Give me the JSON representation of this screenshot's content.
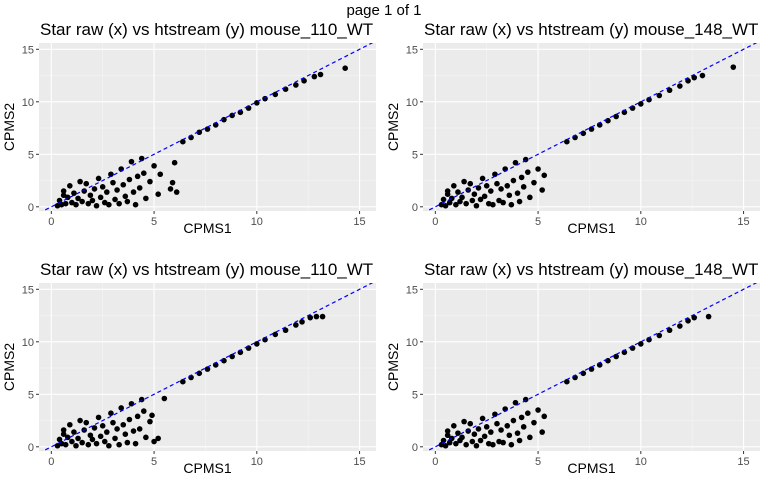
{
  "page_label": "page 1 of 1",
  "chart_data": [
    {
      "type": "scatter",
      "title": "Star raw (x) vs htstream (y) mouse_110_WT",
      "xlabel": "CPMS1",
      "ylabel": "CPMS2",
      "xlim": [
        -0.6,
        15.8
      ],
      "ylim": [
        -0.4,
        15.6
      ],
      "x_ticks": [
        0,
        5,
        10,
        15
      ],
      "y_ticks": [
        0,
        5,
        10,
        15
      ],
      "reference_line": {
        "slope": 1,
        "intercept": 0,
        "style": "dashed",
        "color": "#0000ff"
      },
      "points": [
        [
          0.3,
          0.1
        ],
        [
          0.4,
          0.6
        ],
        [
          0.5,
          0.2
        ],
        [
          0.6,
          1.1
        ],
        [
          0.7,
          0.3
        ],
        [
          0.8,
          0.9
        ],
        [
          1.0,
          0.4
        ],
        [
          1.1,
          1.3
        ],
        [
          1.2,
          0.2
        ],
        [
          1.3,
          0.8
        ],
        [
          1.5,
          0.5
        ],
        [
          1.6,
          1.5
        ],
        [
          1.8,
          0.3
        ],
        [
          1.9,
          1.1
        ],
        [
          2.0,
          0.6
        ],
        [
          2.1,
          1.7
        ],
        [
          2.2,
          0.1
        ],
        [
          2.4,
          0.9
        ],
        [
          2.5,
          1.9
        ],
        [
          2.6,
          0.4
        ],
        [
          2.7,
          1.4
        ],
        [
          2.8,
          0.2
        ],
        [
          3.0,
          2.3
        ],
        [
          3.1,
          0.7
        ],
        [
          3.2,
          1.6
        ],
        [
          3.3,
          0.3
        ],
        [
          3.5,
          2.1
        ],
        [
          3.6,
          1.0
        ],
        [
          3.7,
          0.5
        ],
        [
          3.8,
          2.6
        ],
        [
          4.0,
          1.4
        ],
        [
          4.1,
          0.2
        ],
        [
          4.2,
          2.9
        ],
        [
          4.3,
          1.8
        ],
        [
          4.5,
          3.2
        ],
        [
          4.6,
          0.8
        ],
        [
          4.8,
          2.4
        ],
        [
          5.0,
          3.9
        ],
        [
          5.2,
          1.2
        ],
        [
          5.3,
          3.1
        ],
        [
          6.0,
          4.2
        ],
        [
          5.8,
          1.7
        ],
        [
          5.9,
          2.3
        ],
        [
          6.1,
          1.4
        ],
        [
          0.9,
          2.0
        ],
        [
          1.4,
          2.4
        ],
        [
          0.6,
          1.5
        ],
        [
          1.7,
          2.2
        ],
        [
          2.3,
          2.7
        ],
        [
          2.9,
          3.1
        ],
        [
          3.4,
          3.6
        ],
        [
          3.9,
          4.3
        ],
        [
          4.4,
          4.6
        ],
        [
          6.4,
          6.2
        ],
        [
          6.8,
          6.6
        ],
        [
          7.2,
          7.1
        ],
        [
          7.6,
          7.4
        ],
        [
          8.0,
          7.8
        ],
        [
          8.4,
          8.3
        ],
        [
          8.8,
          8.7
        ],
        [
          9.2,
          9.0
        ],
        [
          9.6,
          9.4
        ],
        [
          10.0,
          9.9
        ],
        [
          10.4,
          10.3
        ],
        [
          10.9,
          10.7
        ],
        [
          11.4,
          11.2
        ],
        [
          11.9,
          11.6
        ],
        [
          12.3,
          12.0
        ],
        [
          12.8,
          12.4
        ],
        [
          13.1,
          12.6
        ],
        [
          14.3,
          13.2
        ]
      ]
    },
    {
      "type": "scatter",
      "title": "Star raw (x) vs htstream (y) mouse_148_WT",
      "xlabel": "CPMS1",
      "ylabel": "CPMS2",
      "xlim": [
        -0.6,
        15.8
      ],
      "ylim": [
        -0.4,
        15.6
      ],
      "x_ticks": [
        0,
        5,
        10,
        15
      ],
      "y_ticks": [
        0,
        5,
        10,
        15
      ],
      "reference_line": {
        "slope": 1,
        "intercept": 0,
        "style": "dashed",
        "color": "#0000ff"
      },
      "points": [
        [
          0.3,
          0.2
        ],
        [
          0.4,
          0.7
        ],
        [
          0.5,
          0.1
        ],
        [
          0.6,
          1.2
        ],
        [
          0.7,
          0.4
        ],
        [
          0.8,
          0.8
        ],
        [
          1.0,
          0.2
        ],
        [
          1.1,
          1.4
        ],
        [
          1.2,
          0.5
        ],
        [
          1.3,
          0.9
        ],
        [
          1.5,
          0.3
        ],
        [
          1.6,
          1.6
        ],
        [
          1.8,
          0.6
        ],
        [
          1.9,
          1.2
        ],
        [
          2.0,
          0.1
        ],
        [
          2.1,
          1.8
        ],
        [
          2.2,
          0.7
        ],
        [
          2.4,
          1.0
        ],
        [
          2.5,
          2.0
        ],
        [
          2.6,
          0.3
        ],
        [
          2.7,
          1.5
        ],
        [
          2.8,
          0.2
        ],
        [
          3.0,
          2.2
        ],
        [
          3.1,
          0.6
        ],
        [
          3.2,
          1.7
        ],
        [
          3.3,
          0.4
        ],
        [
          3.5,
          2.0
        ],
        [
          3.6,
          1.1
        ],
        [
          3.7,
          0.2
        ],
        [
          3.8,
          2.5
        ],
        [
          4.0,
          1.3
        ],
        [
          4.1,
          0.5
        ],
        [
          4.2,
          2.8
        ],
        [
          4.3,
          1.9
        ],
        [
          4.5,
          3.3
        ],
        [
          4.6,
          0.9
        ],
        [
          4.8,
          2.3
        ],
        [
          5.0,
          3.6
        ],
        [
          5.2,
          1.6
        ],
        [
          5.3,
          3.0
        ],
        [
          0.9,
          2.0
        ],
        [
          1.4,
          2.4
        ],
        [
          0.6,
          1.5
        ],
        [
          1.7,
          2.2
        ],
        [
          2.3,
          2.7
        ],
        [
          2.9,
          3.1
        ],
        [
          3.4,
          3.6
        ],
        [
          3.9,
          4.2
        ],
        [
          4.4,
          4.5
        ],
        [
          6.4,
          6.2
        ],
        [
          6.8,
          6.6
        ],
        [
          7.2,
          7.0
        ],
        [
          7.6,
          7.4
        ],
        [
          8.0,
          7.8
        ],
        [
          8.4,
          8.2
        ],
        [
          8.8,
          8.6
        ],
        [
          9.2,
          9.0
        ],
        [
          9.6,
          9.4
        ],
        [
          10.0,
          9.8
        ],
        [
          10.4,
          10.2
        ],
        [
          10.9,
          10.6
        ],
        [
          11.4,
          11.1
        ],
        [
          11.9,
          11.5
        ],
        [
          12.3,
          12.0
        ],
        [
          12.6,
          12.3
        ],
        [
          13.0,
          12.5
        ],
        [
          14.5,
          13.3
        ]
      ]
    },
    {
      "type": "scatter",
      "title": "Star raw (x) vs htstream (y) mouse_110_WT",
      "xlabel": "CPMS1",
      "ylabel": "CPMS2",
      "xlim": [
        -0.6,
        15.8
      ],
      "ylim": [
        -0.4,
        15.6
      ],
      "x_ticks": [
        0,
        5,
        10,
        15
      ],
      "y_ticks": [
        0,
        5,
        10,
        15
      ],
      "reference_line": {
        "slope": 1,
        "intercept": 0,
        "style": "dashed",
        "color": "#0000ff"
      },
      "points": [
        [
          0.3,
          0.1
        ],
        [
          0.4,
          0.7
        ],
        [
          0.5,
          0.3
        ],
        [
          0.6,
          1.2
        ],
        [
          0.7,
          0.2
        ],
        [
          0.8,
          0.9
        ],
        [
          1.0,
          0.5
        ],
        [
          1.1,
          1.4
        ],
        [
          1.2,
          0.1
        ],
        [
          1.3,
          0.8
        ],
        [
          1.5,
          0.4
        ],
        [
          1.6,
          1.6
        ],
        [
          1.8,
          0.2
        ],
        [
          1.9,
          1.1
        ],
        [
          2.0,
          0.7
        ],
        [
          2.1,
          1.8
        ],
        [
          2.2,
          0.3
        ],
        [
          2.4,
          1.0
        ],
        [
          2.5,
          2.0
        ],
        [
          2.6,
          0.5
        ],
        [
          2.7,
          1.4
        ],
        [
          2.8,
          0.1
        ],
        [
          3.0,
          2.3
        ],
        [
          3.1,
          0.8
        ],
        [
          3.2,
          1.7
        ],
        [
          3.3,
          0.2
        ],
        [
          3.5,
          2.1
        ],
        [
          3.6,
          1.2
        ],
        [
          3.7,
          0.4
        ],
        [
          3.8,
          2.6
        ],
        [
          4.0,
          1.5
        ],
        [
          4.1,
          0.3
        ],
        [
          4.2,
          2.9
        ],
        [
          4.3,
          1.7
        ],
        [
          4.5,
          3.4
        ],
        [
          4.6,
          0.9
        ],
        [
          4.8,
          2.4
        ],
        [
          5.0,
          0.5
        ],
        [
          5.2,
          0.8
        ],
        [
          4.9,
          3.0
        ],
        [
          5.5,
          4.6
        ],
        [
          0.9,
          2.1
        ],
        [
          1.4,
          2.5
        ],
        [
          0.6,
          1.6
        ],
        [
          1.7,
          2.3
        ],
        [
          2.3,
          2.8
        ],
        [
          2.9,
          3.2
        ],
        [
          3.4,
          3.7
        ],
        [
          3.9,
          4.1
        ],
        [
          4.4,
          4.5
        ],
        [
          6.4,
          6.2
        ],
        [
          6.8,
          6.6
        ],
        [
          7.2,
          7.0
        ],
        [
          7.6,
          7.4
        ],
        [
          8.0,
          7.8
        ],
        [
          8.4,
          8.2
        ],
        [
          8.8,
          8.6
        ],
        [
          9.2,
          9.0
        ],
        [
          9.6,
          9.4
        ],
        [
          10.0,
          9.8
        ],
        [
          10.4,
          10.2
        ],
        [
          10.9,
          10.7
        ],
        [
          11.4,
          11.1
        ],
        [
          11.9,
          11.6
        ],
        [
          12.2,
          11.9
        ],
        [
          12.6,
          12.3
        ],
        [
          12.9,
          12.4
        ],
        [
          13.2,
          12.4
        ]
      ]
    },
    {
      "type": "scatter",
      "title": "Star raw (x) vs htstream (y) mouse_148_WT",
      "xlabel": "CPMS1",
      "ylabel": "CPMS2",
      "xlim": [
        -0.6,
        15.8
      ],
      "ylim": [
        -0.4,
        15.6
      ],
      "x_ticks": [
        0,
        5,
        10,
        15
      ],
      "y_ticks": [
        0,
        5,
        10,
        15
      ],
      "reference_line": {
        "slope": 1,
        "intercept": 0,
        "style": "dashed",
        "color": "#0000ff"
      },
      "points": [
        [
          0.3,
          0.2
        ],
        [
          0.4,
          0.6
        ],
        [
          0.5,
          0.1
        ],
        [
          0.6,
          1.1
        ],
        [
          0.7,
          0.4
        ],
        [
          0.8,
          0.8
        ],
        [
          1.0,
          0.3
        ],
        [
          1.1,
          1.3
        ],
        [
          1.2,
          0.6
        ],
        [
          1.3,
          0.9
        ],
        [
          1.5,
          0.2
        ],
        [
          1.6,
          1.5
        ],
        [
          1.8,
          0.5
        ],
        [
          1.9,
          1.2
        ],
        [
          2.0,
          0.1
        ],
        [
          2.1,
          1.7
        ],
        [
          2.2,
          0.6
        ],
        [
          2.4,
          1.0
        ],
        [
          2.5,
          1.9
        ],
        [
          2.6,
          0.3
        ],
        [
          2.7,
          1.4
        ],
        [
          2.8,
          0.2
        ],
        [
          3.0,
          2.2
        ],
        [
          3.1,
          0.5
        ],
        [
          3.2,
          1.6
        ],
        [
          3.3,
          0.4
        ],
        [
          3.5,
          2.0
        ],
        [
          3.6,
          1.1
        ],
        [
          3.7,
          0.2
        ],
        [
          3.8,
          2.5
        ],
        [
          4.0,
          1.3
        ],
        [
          4.1,
          0.6
        ],
        [
          4.2,
          2.8
        ],
        [
          4.3,
          1.9
        ],
        [
          4.5,
          3.2
        ],
        [
          4.6,
          0.9
        ],
        [
          4.8,
          2.3
        ],
        [
          5.0,
          3.5
        ],
        [
          5.2,
          1.4
        ],
        [
          5.3,
          2.9
        ],
        [
          0.9,
          2.0
        ],
        [
          1.4,
          2.4
        ],
        [
          0.6,
          1.5
        ],
        [
          1.7,
          2.2
        ],
        [
          2.3,
          2.7
        ],
        [
          2.9,
          3.1
        ],
        [
          3.4,
          3.6
        ],
        [
          3.9,
          4.2
        ],
        [
          4.4,
          4.5
        ],
        [
          6.4,
          6.2
        ],
        [
          6.8,
          6.6
        ],
        [
          7.2,
          7.0
        ],
        [
          7.6,
          7.4
        ],
        [
          8.0,
          7.8
        ],
        [
          8.4,
          8.2
        ],
        [
          8.8,
          8.6
        ],
        [
          9.2,
          9.0
        ],
        [
          9.6,
          9.4
        ],
        [
          10.0,
          9.8
        ],
        [
          10.4,
          10.2
        ],
        [
          10.9,
          10.6
        ],
        [
          11.4,
          11.1
        ],
        [
          11.9,
          11.5
        ],
        [
          12.3,
          12.0
        ],
        [
          12.6,
          12.3
        ],
        [
          13.3,
          12.4
        ]
      ]
    }
  ]
}
